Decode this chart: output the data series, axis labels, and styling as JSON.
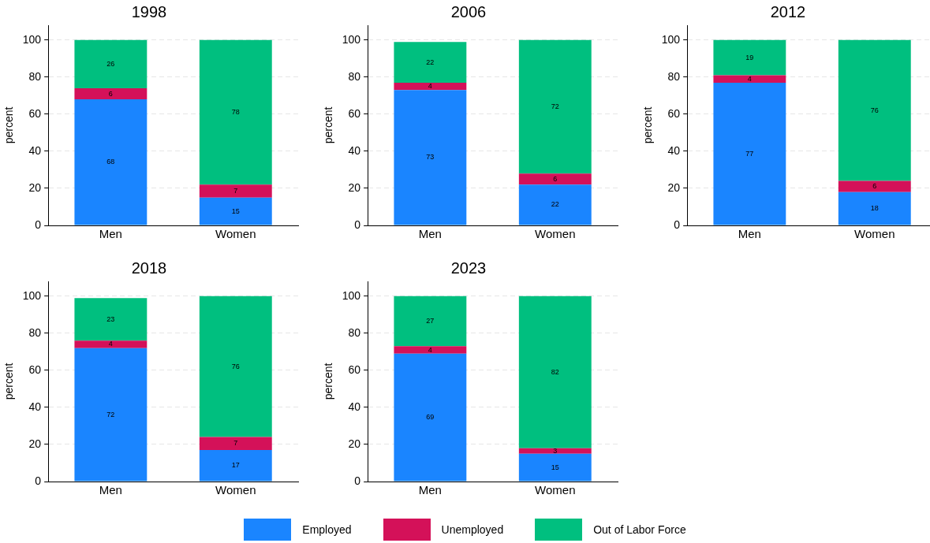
{
  "chart_data": [
    {
      "type": "bar",
      "title": "1998",
      "ylabel": "percent",
      "categories": [
        "Men",
        "Women"
      ],
      "stacked": true,
      "ylim": [
        0,
        108
      ],
      "yticks": [
        0,
        20,
        40,
        60,
        80,
        100
      ],
      "grid": "y",
      "data_labels": true,
      "legend": "bottom",
      "series": [
        {
          "name": "Employed",
          "color": "#1a85ff",
          "values": [
            68,
            15
          ]
        },
        {
          "name": "Unemployed",
          "color": "#d41159",
          "values": [
            6,
            7
          ]
        },
        {
          "name": "Out of Labor Force",
          "color": "#00bf7f",
          "values": [
            26,
            78
          ]
        }
      ]
    },
    {
      "type": "bar",
      "title": "2006",
      "ylabel": "percent",
      "categories": [
        "Men",
        "Women"
      ],
      "stacked": true,
      "ylim": [
        0,
        108
      ],
      "yticks": [
        0,
        20,
        40,
        60,
        80,
        100
      ],
      "grid": "y",
      "data_labels": true,
      "series": [
        {
          "color": "#1a85ff",
          "values": [
            73,
            22
          ]
        },
        {
          "color": "#d41159",
          "values": [
            4,
            6
          ]
        },
        {
          "color": "#00bf7f",
          "values": [
            22,
            72
          ]
        }
      ]
    },
    {
      "type": "bar",
      "title": "2012",
      "ylabel": "percent",
      "categories": [
        "Men",
        "Women"
      ],
      "stacked": true,
      "ylim": [
        0,
        108
      ],
      "yticks": [
        0,
        20,
        40,
        60,
        80,
        100
      ],
      "grid": "y",
      "data_labels": true,
      "series": [
        {
          "color": "#1a85ff",
          "values": [
            77,
            18
          ]
        },
        {
          "color": "#d41159",
          "values": [
            4,
            6
          ]
        },
        {
          "color": "#00bf7f",
          "values": [
            19,
            76
          ]
        }
      ]
    },
    {
      "type": "bar",
      "title": "2018",
      "ylabel": "percent",
      "categories": [
        "Men",
        "Women"
      ],
      "stacked": true,
      "ylim": [
        0,
        108
      ],
      "yticks": [
        0,
        20,
        40,
        60,
        80,
        100
      ],
      "grid": "y",
      "data_labels": true,
      "series": [
        {
          "color": "#1a85ff",
          "values": [
            72,
            17
          ]
        },
        {
          "color": "#d41159",
          "values": [
            4,
            7
          ]
        },
        {
          "color": "#00bf7f",
          "values": [
            23,
            76
          ]
        }
      ]
    },
    {
      "type": "bar",
      "title": "2023",
      "ylabel": "percent",
      "categories": [
        "Men",
        "Women"
      ],
      "stacked": true,
      "ylim": [
        0,
        108
      ],
      "yticks": [
        0,
        20,
        40,
        60,
        80,
        100
      ],
      "grid": "y",
      "data_labels": true,
      "series": [
        {
          "color": "#1a85ff",
          "values": [
            69,
            15
          ]
        },
        {
          "color": "#d41159",
          "values": [
            4,
            3
          ]
        },
        {
          "color": "#00bf7f",
          "values": [
            27,
            82
          ]
        }
      ]
    }
  ]
}
